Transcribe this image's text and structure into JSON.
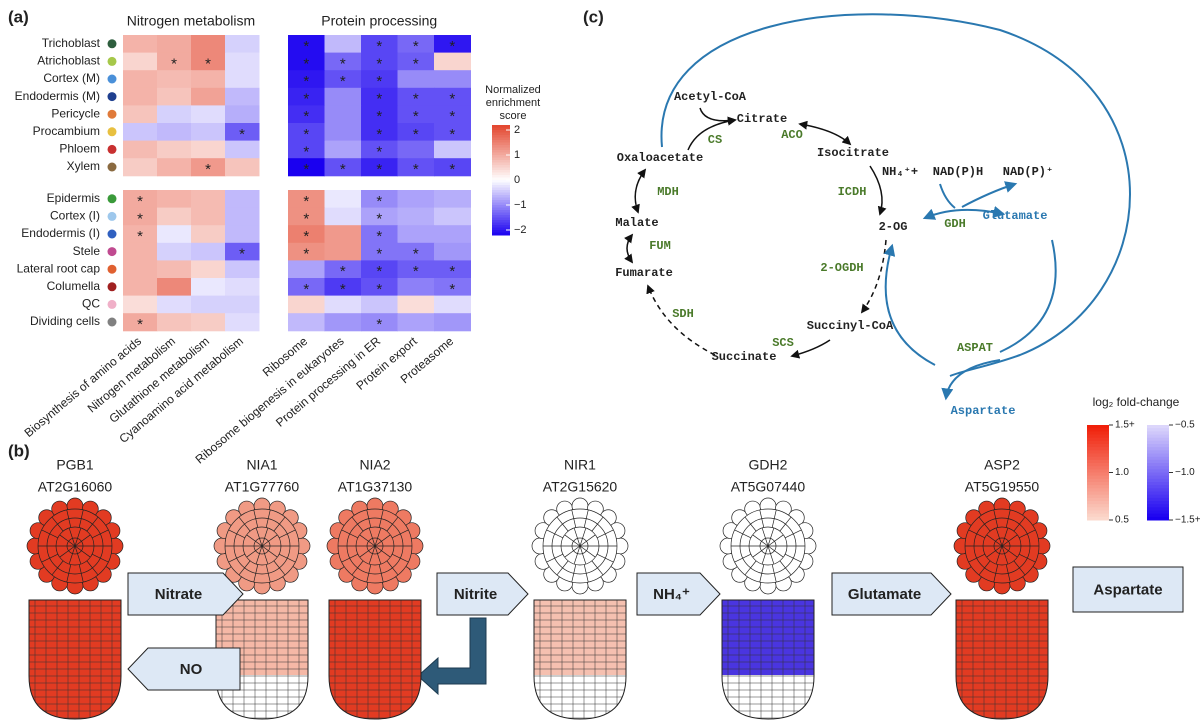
{
  "chart_data": {
    "type": "heatmap",
    "label": "(a)",
    "column_groups": [
      {
        "title": "Nitrogen metabolism",
        "columns": [
          "Biosynthesis of amino acids",
          "Nitrogen metabolism",
          "Glutathione metabolism",
          "Cyanoamino acid metabolism"
        ]
      },
      {
        "title": "Protein processing",
        "columns": [
          "Ribosome",
          "Ribosome biogenesis in eukaryotes",
          "Protein processing in ER",
          "Protein export",
          "Proteasome"
        ]
      }
    ],
    "row_groups": [
      {
        "rows": [
          {
            "name": "Trichoblast",
            "color": "#2e5e3e",
            "values": [
              0.9,
              1.0,
              1.4,
              -0.4,
              -2.1,
              -0.6,
              -1.6,
              -1.3,
              -2.0
            ],
            "stars": [
              null,
              null,
              null,
              null,
              "*",
              null,
              "*",
              "*",
              "*"
            ]
          },
          {
            "name": "Atrichoblast",
            "color": "#a6c84a",
            "values": [
              0.5,
              1.0,
              1.4,
              -0.3,
              -2.1,
              -1.3,
              -1.6,
              -1.4,
              0.5
            ],
            "stars": [
              null,
              "*",
              "*",
              null,
              "*",
              "*",
              "*",
              "*",
              null
            ]
          },
          {
            "name": "Cortex (M)",
            "color": "#4a90d9",
            "values": [
              0.9,
              0.8,
              0.9,
              -0.3,
              -2.0,
              -1.5,
              -1.7,
              -1.0,
              -1.0
            ],
            "stars": [
              null,
              null,
              null,
              null,
              "*",
              "*",
              "*",
              null,
              null
            ]
          },
          {
            "name": "Endodermis (M)",
            "color": "#1f3f8f",
            "values": [
              0.9,
              0.7,
              1.1,
              -0.6,
              -1.9,
              -1.0,
              -1.8,
              -1.5,
              -1.5
            ],
            "stars": [
              null,
              null,
              null,
              null,
              "*",
              null,
              "*",
              "*",
              "*"
            ]
          },
          {
            "name": "Pericycle",
            "color": "#e07a3a",
            "values": [
              0.7,
              -0.4,
              -0.3,
              -0.7,
              -1.8,
              -1.0,
              -1.8,
              -1.5,
              -1.5
            ],
            "stars": [
              null,
              null,
              null,
              null,
              "*",
              null,
              "*",
              "*",
              "*"
            ]
          },
          {
            "name": "Procambium",
            "color": "#e8c040",
            "values": [
              -0.5,
              -0.6,
              -0.5,
              -1.4,
              -1.6,
              -1.0,
              -1.8,
              -1.6,
              -1.5
            ],
            "stars": [
              null,
              null,
              null,
              "*",
              "*",
              null,
              "*",
              "*",
              "*"
            ]
          },
          {
            "name": "Phloem",
            "color": "#c83030",
            "values": [
              0.8,
              0.6,
              0.5,
              -0.5,
              -1.6,
              -0.8,
              -1.5,
              -1.3,
              -0.5
            ],
            "stars": [
              null,
              null,
              null,
              null,
              "*",
              null,
              "*",
              null,
              null
            ]
          },
          {
            "name": "Xylem",
            "color": "#8a6a40",
            "values": [
              0.6,
              0.9,
              1.2,
              0.7,
              -2.2,
              -1.5,
              -1.9,
              -1.5,
              -1.6
            ],
            "stars": [
              null,
              null,
              "*",
              null,
              "*",
              "*",
              "*",
              "*",
              "*"
            ]
          }
        ]
      },
      {
        "rows": [
          {
            "name": "Epidermis",
            "color": "#3a9a3a",
            "values": [
              1.0,
              0.9,
              0.8,
              -0.6,
              1.3,
              -0.2,
              -1.0,
              -0.8,
              -0.7
            ],
            "stars": [
              "*",
              null,
              null,
              null,
              "*",
              null,
              "*",
              null,
              null
            ]
          },
          {
            "name": "Cortex (I)",
            "color": "#9ec8ec",
            "values": [
              1.0,
              0.6,
              0.8,
              -0.6,
              1.3,
              -0.3,
              -0.8,
              -0.7,
              -0.5
            ],
            "stars": [
              "*",
              null,
              null,
              null,
              "*",
              null,
              "*",
              null,
              null
            ]
          },
          {
            "name": "Endodermis (I)",
            "color": "#3060c0",
            "values": [
              0.9,
              -0.2,
              0.6,
              -0.6,
              1.5,
              1.2,
              -1.2,
              -0.8,
              -0.8
            ],
            "stars": [
              "*",
              null,
              null,
              null,
              "*",
              null,
              "*",
              null,
              null
            ]
          },
          {
            "name": "Stele",
            "color": "#c04a90",
            "values": [
              0.9,
              -0.4,
              -0.5,
              -1.4,
              1.3,
              1.2,
              -1.2,
              -1.2,
              -0.9
            ],
            "stars": [
              null,
              null,
              null,
              "*",
              "*",
              null,
              "*",
              "*",
              null
            ]
          },
          {
            "name": "Lateral root cap",
            "color": "#e06030",
            "values": [
              0.9,
              0.8,
              0.5,
              -0.5,
              -0.8,
              -1.3,
              -1.6,
              -1.4,
              -1.4
            ],
            "stars": [
              null,
              null,
              null,
              null,
              null,
              "*",
              "*",
              "*",
              "*"
            ]
          },
          {
            "name": "Columella",
            "color": "#a02020",
            "values": [
              0.9,
              1.4,
              -0.2,
              -0.3,
              -1.3,
              -1.7,
              -1.5,
              -1.1,
              -1.2
            ],
            "stars": [
              null,
              null,
              null,
              null,
              "*",
              "*",
              "*",
              null,
              "*"
            ]
          },
          {
            "name": "QC",
            "color": "#f0b0c8",
            "values": [
              0.4,
              -0.3,
              -0.4,
              -0.4,
              0.5,
              -0.3,
              -0.5,
              0.4,
              -0.3
            ],
            "stars": [
              null,
              null,
              null,
              null,
              null,
              null,
              null,
              null,
              null
            ]
          },
          {
            "name": "Dividing cells",
            "color": "#808080",
            "values": [
              1.0,
              0.7,
              0.6,
              -0.3,
              -0.6,
              -0.9,
              -1.0,
              -0.8,
              -0.9
            ],
            "stars": [
              "*",
              null,
              null,
              null,
              null,
              null,
              "*",
              null,
              null
            ]
          }
        ]
      }
    ],
    "colorbar": {
      "title": "Normalized enrichment score",
      "clim": [
        -2.2,
        2.2
      ],
      "ticks": [
        2,
        1,
        0,
        {
          "value": -1,
          "label": "−1"
        },
        {
          "value": -2,
          "label": "−2"
        }
      ],
      "low_color": "#1a00f0",
      "mid_color": "#ffffff",
      "high_color": "#e3442c"
    }
  },
  "pathway": {
    "label": "(c)",
    "metabolites": [
      "Acetyl-CoA",
      "Citrate",
      "Isocitrate",
      "2-OG",
      "Succinyl-CoA",
      "Succinate",
      "Fumarate",
      "Malate",
      "Oxaloacetate"
    ],
    "enzymes": [
      "CS",
      "ACO",
      "ICDH",
      "2-OGDH",
      "SCS",
      "SDH",
      "FUM",
      "MDH",
      "GDH",
      "ASPAT"
    ],
    "cofactors": [
      "NH₄⁺+",
      "NAD(P)H",
      "NAD(P)⁺"
    ],
    "amino_acids": [
      "Glutamate",
      "Aspartate"
    ],
    "enzyme_color": "#4a7a2a",
    "amino_color": "#2a78b0"
  },
  "expression": {
    "label": "(b)",
    "genes": [
      {
        "name": "PGB1",
        "id": "AT2G16060",
        "section_color": "#e23b22",
        "root_color": "#e23b22",
        "tip_color": "#e23b22"
      },
      {
        "name": "NIA1",
        "id": "AT1G77760",
        "section_color": "#f09a84",
        "root_color": "#f5b8a6",
        "tip_color": "#ffffff"
      },
      {
        "name": "NIA2",
        "id": "AT1G37130",
        "section_color": "#ee7a62",
        "root_color": "#e23b22",
        "tip_color": "#e23b22"
      },
      {
        "name": "NIR1",
        "id": "AT2G15620",
        "section_color": "#ffffff",
        "root_color": "#f5c0b0",
        "tip_color": "#ffffff"
      },
      {
        "name": "GDH2",
        "id": "AT5G07440",
        "section_color": "#ffffff",
        "root_color": "#4a35e0",
        "tip_color": "#ffffff"
      },
      {
        "name": "ASP2",
        "id": "AT5G19550",
        "section_color": "#e23b22",
        "root_color": "#e23b22",
        "tip_color": "#e23b22"
      }
    ],
    "compounds": [
      "Nitrate",
      "NO",
      "Nitrite",
      "NH₄⁺",
      "Glutamate",
      "Aspartate"
    ],
    "legend": {
      "title": "log₂ fold-change",
      "up_ticks": [
        {
          "value": 1.5,
          "label": "1.5+"
        },
        {
          "value": 1.0,
          "label": "1.0"
        },
        {
          "value": 0.5,
          "label": "0.5"
        }
      ],
      "down_ticks": [
        {
          "value": -0.5,
          "label": "−0.5"
        },
        {
          "value": -1.0,
          "label": "−1.0"
        },
        {
          "value": -1.5,
          "label": "−1.5+"
        }
      ],
      "up_colors": [
        "#fbd8cc",
        "#f0200a"
      ],
      "down_colors": [
        "#dcd6fb",
        "#1a00f0"
      ]
    }
  }
}
